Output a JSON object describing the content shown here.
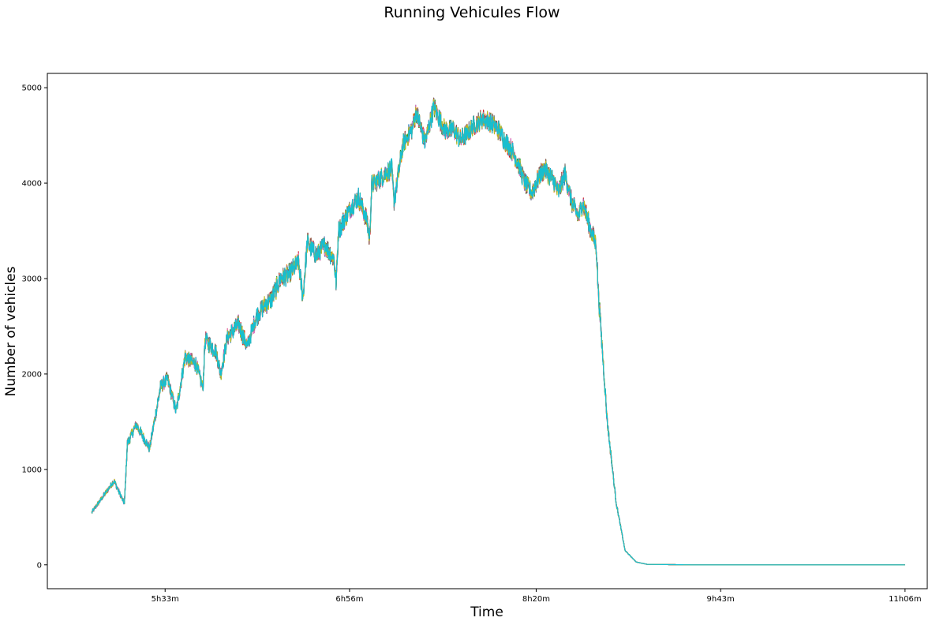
{
  "chart_data": {
    "type": "line",
    "title": "Running Vehicules Flow",
    "xlabel": "Time",
    "ylabel": "Number of vehicles",
    "x_ticks": [
      {
        "minutes": 333,
        "label": "5h33m"
      },
      {
        "minutes": 416,
        "label": "6h56m"
      },
      {
        "minutes": 500,
        "label": "8h20m"
      },
      {
        "minutes": 583,
        "label": "9h43m"
      },
      {
        "minutes": 666,
        "label": "11h06m"
      }
    ],
    "y_ticks": [
      0,
      1000,
      2000,
      3000,
      4000,
      5000
    ],
    "xlim": [
      280,
      676
    ],
    "ylim": [
      -250,
      5150
    ],
    "grid": false,
    "legend": "none",
    "series_count": 10,
    "colors": [
      "#1f77b4",
      "#ff7f0e",
      "#2ca02c",
      "#d62728",
      "#9467bd",
      "#8c564b",
      "#e377c2",
      "#7f7f7f",
      "#bcbd22",
      "#17becf"
    ],
    "envelope": {
      "x": [
        300,
        310,
        314.7,
        316,
        320,
        326,
        331,
        334,
        338,
        342,
        347,
        350,
        351,
        356,
        358,
        361,
        366,
        370,
        374,
        377,
        381,
        385,
        389,
        393,
        395,
        397,
        401,
        405,
        409,
        410,
        411,
        416,
        420,
        424,
        425,
        426,
        430,
        432,
        435,
        436,
        440,
        444,
        446,
        450,
        454,
        456,
        459,
        463,
        466,
        472,
        476,
        480,
        483,
        486,
        489,
        492,
        495,
        498,
        502,
        504,
        508,
        510,
        513,
        516,
        519,
        521,
        524,
        527,
        528,
        532,
        536,
        540,
        545,
        550,
        570,
        600,
        645,
        666
      ],
      "y": [
        550,
        880,
        640,
        1270,
        1470,
        1220,
        1870,
        1950,
        1610,
        2180,
        2100,
        1850,
        2360,
        2230,
        2000,
        2380,
        2520,
        2290,
        2600,
        2700,
        2790,
        3000,
        3050,
        3180,
        2800,
        3380,
        3250,
        3350,
        3200,
        2950,
        3500,
        3720,
        3850,
        3600,
        3400,
        3980,
        4050,
        4100,
        4150,
        3800,
        4400,
        4560,
        4750,
        4430,
        4800,
        4700,
        4550,
        4560,
        4450,
        4600,
        4680,
        4630,
        4560,
        4440,
        4350,
        4200,
        4000,
        3900,
        4100,
        4150,
        4010,
        3900,
        4100,
        3800,
        3650,
        3800,
        3550,
        3350,
        2850,
        1500,
        650,
        150,
        30,
        5,
        0,
        0,
        0,
        0
      ]
    }
  }
}
